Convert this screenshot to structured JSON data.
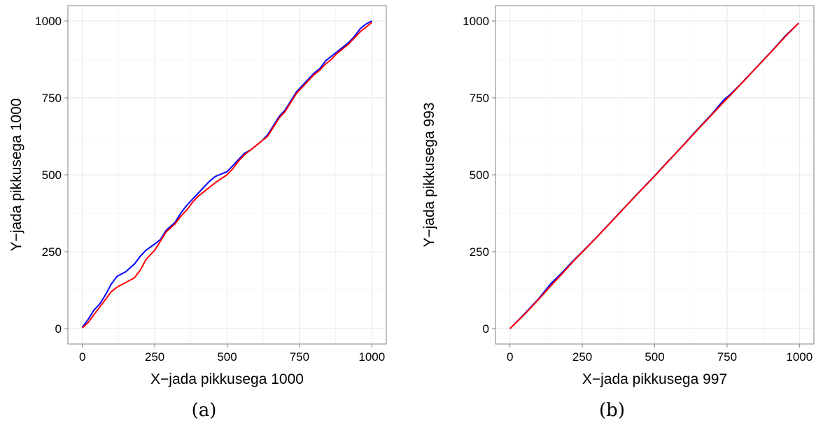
{
  "chart_data": [
    {
      "type": "line",
      "caption": "(a)",
      "xlabel": "X−jada pikkusega 1000",
      "ylabel": "Y−jada pikkusega 1000",
      "xlim": [
        -50,
        1050
      ],
      "ylim": [
        -50,
        1050
      ],
      "xticks": [
        "0",
        "250",
        "500",
        "750",
        "1000"
      ],
      "yticks": [
        "0",
        "250",
        "500",
        "750",
        "1000"
      ],
      "grid": true,
      "series": [
        {
          "color": "#0000ff",
          "points": [
            [
              0,
              5
            ],
            [
              20,
              30
            ],
            [
              40,
              60
            ],
            [
              60,
              80
            ],
            [
              80,
              110
            ],
            [
              100,
              145
            ],
            [
              120,
              170
            ],
            [
              150,
              185
            ],
            [
              180,
              210
            ],
            [
              200,
              235
            ],
            [
              220,
              255
            ],
            [
              250,
              275
            ],
            [
              270,
              290
            ],
            [
              290,
              320
            ],
            [
              320,
              345
            ],
            [
              340,
              375
            ],
            [
              360,
              400
            ],
            [
              380,
              420
            ],
            [
              400,
              440
            ],
            [
              420,
              460
            ],
            [
              440,
              480
            ],
            [
              460,
              495
            ],
            [
              500,
              510
            ],
            [
              520,
              530
            ],
            [
              540,
              550
            ],
            [
              560,
              570
            ],
            [
              580,
              580
            ],
            [
              600,
              595
            ],
            [
              620,
              610
            ],
            [
              640,
              630
            ],
            [
              660,
              660
            ],
            [
              680,
              690
            ],
            [
              700,
              710
            ],
            [
              720,
              740
            ],
            [
              740,
              770
            ],
            [
              760,
              790
            ],
            [
              780,
              810
            ],
            [
              800,
              830
            ],
            [
              820,
              845
            ],
            [
              840,
              870
            ],
            [
              860,
              885
            ],
            [
              880,
              900
            ],
            [
              900,
              915
            ],
            [
              920,
              930
            ],
            [
              940,
              950
            ],
            [
              960,
              975
            ],
            [
              980,
              990
            ],
            [
              1000,
              1000
            ]
          ]
        },
        {
          "color": "#ff0000",
          "points": [
            [
              0,
              2
            ],
            [
              20,
              20
            ],
            [
              40,
              45
            ],
            [
              60,
              70
            ],
            [
              80,
              95
            ],
            [
              100,
              120
            ],
            [
              120,
              135
            ],
            [
              150,
              150
            ],
            [
              180,
              165
            ],
            [
              200,
              190
            ],
            [
              220,
              225
            ],
            [
              250,
              255
            ],
            [
              270,
              285
            ],
            [
              290,
              315
            ],
            [
              320,
              340
            ],
            [
              340,
              365
            ],
            [
              360,
              385
            ],
            [
              380,
              410
            ],
            [
              400,
              430
            ],
            [
              420,
              445
            ],
            [
              440,
              460
            ],
            [
              460,
              475
            ],
            [
              500,
              500
            ],
            [
              520,
              520
            ],
            [
              540,
              545
            ],
            [
              560,
              565
            ],
            [
              580,
              580
            ],
            [
              600,
              595
            ],
            [
              620,
              610
            ],
            [
              640,
              625
            ],
            [
              660,
              655
            ],
            [
              680,
              685
            ],
            [
              700,
              705
            ],
            [
              720,
              735
            ],
            [
              740,
              765
            ],
            [
              760,
              785
            ],
            [
              780,
              805
            ],
            [
              800,
              825
            ],
            [
              820,
              840
            ],
            [
              840,
              860
            ],
            [
              860,
              875
            ],
            [
              880,
              895
            ],
            [
              900,
              910
            ],
            [
              920,
              925
            ],
            [
              940,
              945
            ],
            [
              960,
              965
            ],
            [
              980,
              980
            ],
            [
              1000,
              995
            ]
          ]
        }
      ]
    },
    {
      "type": "line",
      "caption": "(b)",
      "xlabel": "X−jada pikkusega 997",
      "ylabel": "Y−jada pikkusega 993",
      "xlim": [
        -50,
        1050
      ],
      "ylim": [
        -50,
        1050
      ],
      "xticks": [
        "0",
        "250",
        "500",
        "750",
        "1000"
      ],
      "yticks": [
        "0",
        "250",
        "500",
        "750",
        "1000"
      ],
      "grid": true,
      "series": [
        {
          "color": "#0000ff",
          "points": [
            [
              0,
              0
            ],
            [
              50,
              48
            ],
            [
              100,
              98
            ],
            [
              140,
              145
            ],
            [
              180,
              182
            ],
            [
              220,
              222
            ],
            [
              260,
              259
            ],
            [
              300,
              298
            ],
            [
              350,
              348
            ],
            [
              400,
              398
            ],
            [
              450,
              448
            ],
            [
              500,
              497
            ],
            [
              550,
              548
            ],
            [
              600,
              598
            ],
            [
              650,
              650
            ],
            [
              700,
              700
            ],
            [
              740,
              745
            ],
            [
              760,
              760
            ],
            [
              800,
              798
            ],
            [
              850,
              848
            ],
            [
              900,
              898
            ],
            [
              950,
              950
            ],
            [
              997,
              993
            ]
          ]
        },
        {
          "color": "#ff0000",
          "points": [
            [
              0,
              0
            ],
            [
              50,
              46
            ],
            [
              100,
              96
            ],
            [
              140,
              138
            ],
            [
              180,
              178
            ],
            [
              220,
              220
            ],
            [
              260,
              258
            ],
            [
              300,
              297
            ],
            [
              350,
              347
            ],
            [
              400,
              397
            ],
            [
              450,
              447
            ],
            [
              500,
              496
            ],
            [
              550,
              547
            ],
            [
              600,
              597
            ],
            [
              650,
              648
            ],
            [
              700,
              698
            ],
            [
              740,
              738
            ],
            [
              760,
              757
            ],
            [
              800,
              797
            ],
            [
              850,
              847
            ],
            [
              900,
              897
            ],
            [
              950,
              948
            ],
            [
              997,
              993
            ]
          ]
        }
      ]
    }
  ]
}
